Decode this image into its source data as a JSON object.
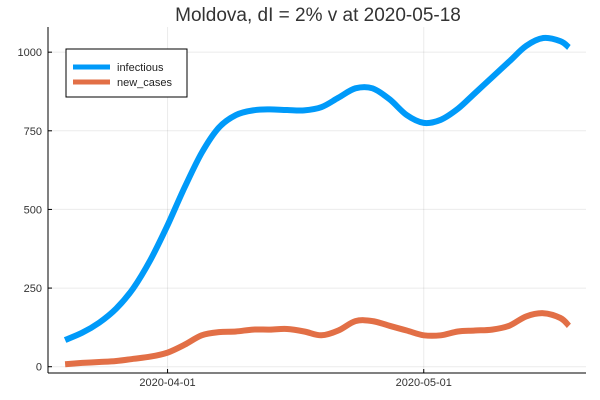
{
  "chart_data": {
    "type": "line",
    "title": "Moldova,  dI = 2% v at 2020-05-18",
    "xlabel": "",
    "ylabel": "",
    "x_ticks": [
      "2020-04-01",
      "2020-05-01"
    ],
    "y_ticks": [
      0,
      250,
      500,
      750,
      1000
    ],
    "ylim": [
      -20,
      1080
    ],
    "xlim": [
      "2020-03-18",
      "2020-05-20"
    ],
    "grid": true,
    "legend_position": "top-left",
    "x": [
      "2020-03-20",
      "2020-03-22",
      "2020-03-24",
      "2020-03-26",
      "2020-03-28",
      "2020-03-30",
      "2020-04-01",
      "2020-04-03",
      "2020-04-05",
      "2020-04-07",
      "2020-04-09",
      "2020-04-11",
      "2020-04-13",
      "2020-04-15",
      "2020-04-17",
      "2020-04-19",
      "2020-04-21",
      "2020-04-23",
      "2020-04-25",
      "2020-04-27",
      "2020-04-29",
      "2020-05-01",
      "2020-05-03",
      "2020-05-05",
      "2020-05-07",
      "2020-05-09",
      "2020-05-11",
      "2020-05-13",
      "2020-05-15",
      "2020-05-17",
      "2020-05-18"
    ],
    "series": [
      {
        "name": "infectious",
        "color": "#009af9",
        "values": [
          85,
          108,
          140,
          185,
          250,
          340,
          450,
          570,
          680,
          760,
          800,
          815,
          818,
          816,
          815,
          825,
          855,
          885,
          885,
          850,
          800,
          775,
          785,
          820,
          870,
          920,
          970,
          1020,
          1045,
          1035,
          1015
        ]
      },
      {
        "name": "new_cases",
        "color": "#e26f46",
        "values": [
          8,
          12,
          15,
          18,
          25,
          32,
          45,
          70,
          100,
          110,
          112,
          118,
          118,
          120,
          112,
          100,
          115,
          145,
          145,
          130,
          115,
          100,
          100,
          112,
          115,
          118,
          130,
          160,
          170,
          155,
          130
        ]
      }
    ]
  }
}
